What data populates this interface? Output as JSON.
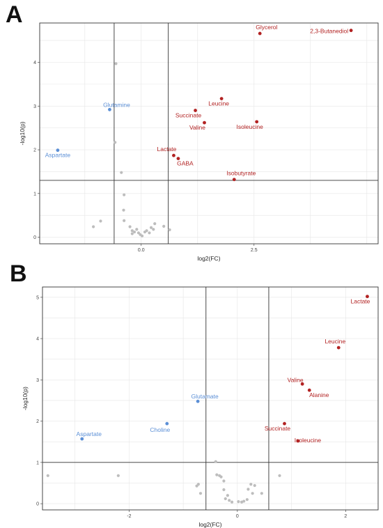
{
  "panel_labels": [
    "A",
    "B"
  ],
  "colors": {
    "up": "#b22222",
    "down": "#5b8fd6",
    "ns": "#bdbdbd"
  },
  "chart_data": [
    {
      "type": "scatter",
      "title": "",
      "xlabel": "log2(FC)",
      "ylabel": "-log10(p)",
      "xlim": [
        -2.25,
        5.25
      ],
      "ylim": [
        -0.15,
        4.9
      ],
      "xticks": [
        0,
        2.5
      ],
      "xtick_labels": [
        "0.0",
        "2.5"
      ],
      "yticks": [
        0,
        1,
        2,
        3,
        4
      ],
      "ytick_labels": [
        "0",
        "1",
        "2",
        "3",
        "4"
      ],
      "thresholds": {
        "x": [
          -0.6,
          0.6
        ],
        "y": 1.3
      },
      "grid": true,
      "labeled_points": [
        {
          "label": "Glycerol",
          "x": 2.63,
          "y": 4.66,
          "group": "up"
        },
        {
          "label": "2,3-Butanediol",
          "x": 4.65,
          "y": 4.73,
          "group": "up"
        },
        {
          "label": "Leucine",
          "x": 1.78,
          "y": 3.17,
          "group": "up"
        },
        {
          "label": "Succinate",
          "x": 1.2,
          "y": 2.9,
          "group": "up"
        },
        {
          "label": "Valine",
          "x": 1.4,
          "y": 2.62,
          "group": "up"
        },
        {
          "label": "Isoleucine",
          "x": 2.56,
          "y": 2.64,
          "group": "up"
        },
        {
          "label": "Lactate",
          "x": 0.72,
          "y": 1.87,
          "group": "up"
        },
        {
          "label": "GABA",
          "x": 0.82,
          "y": 1.8,
          "group": "up"
        },
        {
          "label": "Isobutyrate",
          "x": 2.06,
          "y": 1.32,
          "group": "up"
        },
        {
          "label": "Glutamine",
          "x": -0.7,
          "y": 2.92,
          "group": "down"
        },
        {
          "label": "Aspartate",
          "x": -1.85,
          "y": 1.99,
          "group": "down"
        }
      ],
      "other_points": [
        {
          "x": -0.56,
          "y": 3.97
        },
        {
          "x": -0.58,
          "y": 2.17
        },
        {
          "x": -0.44,
          "y": 1.48
        },
        {
          "x": -0.38,
          "y": 0.97
        },
        {
          "x": -0.39,
          "y": 0.62
        },
        {
          "x": -0.38,
          "y": 0.38
        },
        {
          "x": -1.06,
          "y": 0.24
        },
        {
          "x": -0.9,
          "y": 0.37
        },
        {
          "x": -0.25,
          "y": 0.24
        },
        {
          "x": -0.2,
          "y": 0.15
        },
        {
          "x": -0.15,
          "y": 0.12
        },
        {
          "x": -0.1,
          "y": 0.18
        },
        {
          "x": -0.06,
          "y": 0.1
        },
        {
          "x": -0.02,
          "y": 0.06
        },
        {
          "x": 0.02,
          "y": 0.03
        },
        {
          "x": -0.2,
          "y": 0.08
        },
        {
          "x": 0.08,
          "y": 0.12
        },
        {
          "x": 0.12,
          "y": 0.15
        },
        {
          "x": 0.18,
          "y": 0.1
        },
        {
          "x": 0.22,
          "y": 0.22
        },
        {
          "x": 0.27,
          "y": 0.18
        },
        {
          "x": 0.3,
          "y": 0.31
        },
        {
          "x": 0.5,
          "y": 0.25
        },
        {
          "x": 0.63,
          "y": 0.17
        }
      ]
    },
    {
      "type": "scatter",
      "title": "",
      "xlabel": "log2(FC)",
      "ylabel": "-log10(p)",
      "xlim": [
        -3.6,
        2.6
      ],
      "ylim": [
        -0.15,
        5.25
      ],
      "xticks": [
        -2,
        0,
        2
      ],
      "xtick_labels": [
        "-2",
        "0",
        "2"
      ],
      "yticks": [
        0,
        1,
        2,
        3,
        4,
        5
      ],
      "ytick_labels": [
        "0",
        "1",
        "2",
        "3",
        "4",
        "5"
      ],
      "thresholds": {
        "x": [
          -0.58,
          0.58
        ],
        "y": 1
      },
      "grid": true,
      "labeled_points": [
        {
          "label": "Lactate",
          "x": 2.4,
          "y": 5.02,
          "group": "up"
        },
        {
          "label": "Leucine",
          "x": 1.87,
          "y": 3.78,
          "group": "up"
        },
        {
          "label": "Valine",
          "x": 1.2,
          "y": 2.9,
          "group": "up"
        },
        {
          "label": "Alanine",
          "x": 1.33,
          "y": 2.75,
          "group": "up"
        },
        {
          "label": "Succinate",
          "x": 0.87,
          "y": 1.94,
          "group": "up"
        },
        {
          "label": "Isoleucine",
          "x": 1.12,
          "y": 1.52,
          "group": "up"
        },
        {
          "label": "Glutamate",
          "x": -0.73,
          "y": 2.48,
          "group": "down"
        },
        {
          "label": "Choline",
          "x": -1.3,
          "y": 1.94,
          "group": "down"
        },
        {
          "label": "Aspartate",
          "x": -2.87,
          "y": 1.57,
          "group": "down"
        }
      ],
      "other_points": [
        {
          "x": -3.5,
          "y": 0.68
        },
        {
          "x": -2.2,
          "y": 0.68
        },
        {
          "x": 0.78,
          "y": 0.68
        },
        {
          "x": -0.75,
          "y": 0.43
        },
        {
          "x": -0.72,
          "y": 0.47
        },
        {
          "x": -0.68,
          "y": 0.25
        },
        {
          "x": -0.4,
          "y": 1.02
        },
        {
          "x": -0.38,
          "y": 0.7
        },
        {
          "x": -0.33,
          "y": 0.68
        },
        {
          "x": -0.3,
          "y": 0.65
        },
        {
          "x": -0.25,
          "y": 0.55
        },
        {
          "x": -0.25,
          "y": 0.34
        },
        {
          "x": -0.22,
          "y": 0.12
        },
        {
          "x": -0.18,
          "y": 0.2
        },
        {
          "x": -0.15,
          "y": 0.08
        },
        {
          "x": -0.1,
          "y": 0.04
        },
        {
          "x": 0.02,
          "y": 0.05
        },
        {
          "x": 0.08,
          "y": 0.04
        },
        {
          "x": 0.12,
          "y": 0.06
        },
        {
          "x": 0.18,
          "y": 0.1
        },
        {
          "x": 0.2,
          "y": 0.35
        },
        {
          "x": 0.25,
          "y": 0.47
        },
        {
          "x": 0.28,
          "y": 0.25
        },
        {
          "x": 0.32,
          "y": 0.44
        },
        {
          "x": 0.45,
          "y": 0.25
        }
      ]
    }
  ]
}
